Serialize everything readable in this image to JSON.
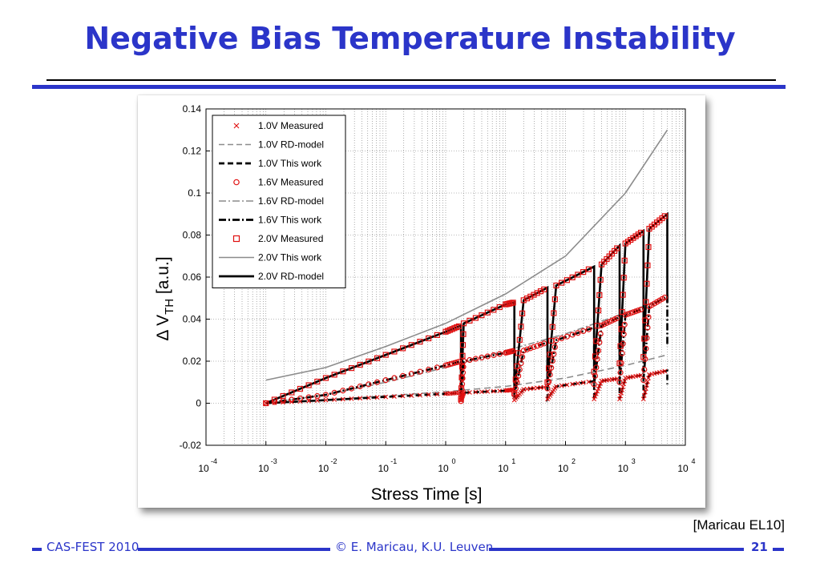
{
  "slide": {
    "title": "Negative Bias Temperature Instability",
    "citation": "[Maricau EL10]"
  },
  "footer": {
    "left": "CAS-FEST 2010",
    "center": "© E. Maricau, K.U. Leuven",
    "page": "21"
  },
  "colors": {
    "title_blue": "#2b35c9",
    "measured_red": "#e01010",
    "rd_gray": "#8c8c8c"
  },
  "chart_data": {
    "type": "line",
    "xlabel": "Stress Time [s]",
    "ylabel": "Δ V_TH [a.u.]",
    "xscale": "log",
    "xlim": [
      0.0001,
      10000
    ],
    "ylim": [
      -0.02,
      0.14
    ],
    "x_ticks": [
      {
        "base": "10",
        "exp": "-4"
      },
      {
        "base": "10",
        "exp": "-3"
      },
      {
        "base": "10",
        "exp": "-2"
      },
      {
        "base": "10",
        "exp": "-1"
      },
      {
        "base": "10",
        "exp": "0"
      },
      {
        "base": "10",
        "exp": "1"
      },
      {
        "base": "10",
        "exp": "2"
      },
      {
        "base": "10",
        "exp": "3"
      },
      {
        "base": "10",
        "exp": "4"
      }
    ],
    "y_ticks": [
      "-0.02",
      "0",
      "0.02",
      "0.04",
      "0.06",
      "0.08",
      "0.1",
      "0.12",
      "0.14"
    ],
    "grid": true,
    "legend_position": "top-left",
    "legend": [
      {
        "label": "1.0V Measured",
        "marker": "x",
        "color": "#e01010",
        "line": "none"
      },
      {
        "label": "1.0V RD-model",
        "color": "#8c8c8c",
        "line": "dashed"
      },
      {
        "label": "1.0V This work",
        "color": "#000000",
        "line": "dashed-bold"
      },
      {
        "label": "1.6V Measured",
        "marker": "o",
        "color": "#e01010",
        "line": "none"
      },
      {
        "label": "1.6V RD-model",
        "color": "#8c8c8c",
        "line": "dashdot"
      },
      {
        "label": "1.6V This work",
        "color": "#000000",
        "line": "dashdot-bold"
      },
      {
        "label": "2.0V Measured",
        "marker": "square",
        "color": "#e01010",
        "line": "none"
      },
      {
        "label": "2.0V This work",
        "color": "#8c8c8c",
        "line": "solid"
      },
      {
        "label": "2.0V RD-model",
        "color": "#000000",
        "line": "solid-bold"
      }
    ],
    "series": [
      {
        "name": "1.0V RD-model",
        "x": [
          0.001,
          0.01,
          0.1,
          1,
          10,
          100,
          1000,
          5000
        ],
        "y": [
          0.0,
          0.0015,
          0.0035,
          0.0055,
          0.008,
          0.012,
          0.018,
          0.023
        ]
      },
      {
        "name": "1.0V This work",
        "x": [
          0.001,
          0.01,
          0.1,
          1,
          1.8,
          1.8,
          2,
          10,
          14,
          14,
          20,
          50,
          50,
          70,
          300,
          300,
          400,
          800,
          800,
          1000,
          2000,
          2000,
          2500,
          5000,
          5000
        ],
        "y": [
          0.0,
          0.0015,
          0.003,
          0.0045,
          0.005,
          0.0015,
          0.005,
          0.006,
          0.0065,
          0.0015,
          0.0066,
          0.0078,
          0.002,
          0.008,
          0.0105,
          0.002,
          0.0106,
          0.0118,
          0.002,
          0.012,
          0.0135,
          0.002,
          0.0136,
          0.0155,
          0.009
        ]
      },
      {
        "name": "1.6V RD-model",
        "x": [
          0.001,
          0.01,
          0.1,
          1,
          10,
          100,
          1000,
          5000
        ],
        "y": [
          0.0,
          0.004,
          0.01,
          0.017,
          0.025,
          0.033,
          0.043,
          0.05
        ]
      },
      {
        "name": "1.6V This work",
        "x": [
          0.001,
          0.01,
          0.1,
          1,
          1.8,
          1.8,
          2,
          10,
          14,
          14,
          20,
          50,
          50,
          70,
          300,
          300,
          400,
          800,
          800,
          1000,
          2000,
          2000,
          2500,
          5000,
          5000
        ],
        "y": [
          0.0,
          0.004,
          0.011,
          0.018,
          0.02,
          0.001,
          0.02,
          0.024,
          0.025,
          0.004,
          0.025,
          0.029,
          0.007,
          0.03,
          0.036,
          0.009,
          0.037,
          0.041,
          0.01,
          0.042,
          0.045,
          0.011,
          0.046,
          0.051,
          0.027
        ]
      },
      {
        "name": "2.0V This work",
        "x": [
          0.001,
          0.01,
          0.1,
          1,
          10,
          100,
          1000,
          5000
        ],
        "y": [
          0.011,
          0.017,
          0.027,
          0.038,
          0.052,
          0.07,
          0.1,
          0.13
        ]
      },
      {
        "name": "2.0V RD-model",
        "x": [
          0.001,
          0.01,
          0.1,
          1,
          1.8,
          1.8,
          2,
          10,
          14,
          14,
          20,
          50,
          50,
          70,
          300,
          300,
          400,
          800,
          800,
          1000,
          2000,
          2000,
          2500,
          5000,
          5000
        ],
        "y": [
          0.0,
          0.012,
          0.023,
          0.034,
          0.037,
          0.002,
          0.038,
          0.047,
          0.048,
          0.005,
          0.049,
          0.055,
          0.01,
          0.056,
          0.065,
          0.015,
          0.066,
          0.075,
          0.019,
          0.076,
          0.082,
          0.022,
          0.083,
          0.09,
          0.048
        ]
      }
    ]
  }
}
